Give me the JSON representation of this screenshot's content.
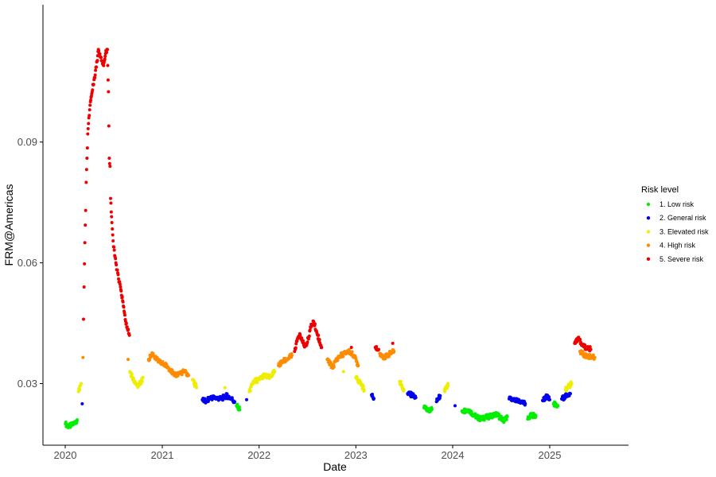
{
  "chart_data": {
    "type": "scatter",
    "xlabel": "Date",
    "ylabel": "FRM@Americas",
    "x_ticks": [
      "2020",
      "2021",
      "2022",
      "2023",
      "2024",
      "2025"
    ],
    "y_ticks": [
      0.03,
      0.06,
      0.09
    ],
    "y_tick_labels": [
      "0.03",
      "0.06",
      "0.09"
    ],
    "xlim": [
      "2019-10-09",
      "2025-10-25"
    ],
    "ylim": [
      0.0147,
      0.1241
    ],
    "grid": false,
    "legend": {
      "title": "Risk level",
      "position": "right",
      "items": [
        {
          "label": "1. Low risk",
          "color": "#00ee00"
        },
        {
          "label": "2. General risk",
          "color": "#0000ee"
        },
        {
          "label": "3. Elevated risk",
          "color": "#eeee00"
        },
        {
          "label": "4. High risk",
          "color": "#ff8c00"
        },
        {
          "label": "5. Severe risk",
          "color": "#ee0000"
        }
      ]
    },
    "series": [
      {
        "risk": 1,
        "values": [
          [
            "2020-01-02",
            0.02
          ],
          [
            "2020-01-15",
            0.0193
          ],
          [
            "2020-02-01",
            0.02
          ],
          [
            "2020-02-15",
            0.021
          ],
          [
            "2021-10-08",
            0.0245
          ],
          [
            "2021-10-20",
            0.0235
          ],
          [
            "2023-09-15",
            0.024
          ],
          [
            "2023-10-01",
            0.0234
          ],
          [
            "2023-10-15",
            0.0236
          ],
          [
            "2024-02-05",
            0.0232
          ],
          [
            "2024-03-01",
            0.0235
          ],
          [
            "2024-03-20",
            0.0222
          ],
          [
            "2024-04-15",
            0.0212
          ],
          [
            "2024-05-15",
            0.0218
          ],
          [
            "2024-06-15",
            0.0224
          ],
          [
            "2024-07-10",
            0.0208
          ],
          [
            "2024-07-25",
            0.0218
          ],
          [
            "2024-10-10",
            0.0212
          ],
          [
            "2024-10-25",
            0.0222
          ],
          [
            "2024-11-10",
            0.022
          ],
          [
            "2025-01-15",
            0.025
          ],
          [
            "2025-02-01",
            0.0245
          ]
        ]
      },
      {
        "risk": 2,
        "values": [
          [
            "2020-03-05",
            0.025
          ],
          [
            "2021-06-01",
            0.026
          ],
          [
            "2021-06-15",
            0.0255
          ],
          [
            "2021-07-01",
            0.0265
          ],
          [
            "2021-07-20",
            0.0265
          ],
          [
            "2021-08-10",
            0.0262
          ],
          [
            "2021-09-01",
            0.027
          ],
          [
            "2021-09-20",
            0.0262
          ],
          [
            "2021-10-01",
            0.0255
          ],
          [
            "2021-11-15",
            0.026
          ],
          [
            "2023-03-01",
            0.0272
          ],
          [
            "2023-03-10",
            0.0263
          ],
          [
            "2023-07-15",
            0.0275
          ],
          [
            "2023-08-01",
            0.0272
          ],
          [
            "2023-08-15",
            0.0265
          ],
          [
            "2023-11-01",
            0.0255
          ],
          [
            "2023-11-15",
            0.027
          ],
          [
            "2024-01-10",
            0.0245
          ],
          [
            "2024-08-01",
            0.0262
          ],
          [
            "2024-08-20",
            0.0258
          ],
          [
            "2024-09-15",
            0.0255
          ],
          [
            "2024-10-01",
            0.025
          ],
          [
            "2024-12-05",
            0.0258
          ],
          [
            "2024-12-20",
            0.0268
          ],
          [
            "2025-01-01",
            0.026
          ],
          [
            "2025-02-15",
            0.0262
          ],
          [
            "2025-03-10",
            0.0272
          ],
          [
            "2025-03-20",
            0.0275
          ]
        ]
      },
      {
        "risk": 3,
        "values": [
          [
            "2020-02-20",
            0.028
          ],
          [
            "2020-03-01",
            0.03
          ],
          [
            "2020-09-01",
            0.033
          ],
          [
            "2020-09-20",
            0.03
          ],
          [
            "2020-10-05",
            0.0295
          ],
          [
            "2020-10-20",
            0.0315
          ],
          [
            "2021-04-25",
            0.031
          ],
          [
            "2021-05-10",
            0.029
          ],
          [
            "2021-08-25",
            0.029
          ],
          [
            "2021-11-25",
            0.028
          ],
          [
            "2021-12-10",
            0.0305
          ],
          [
            "2022-01-01",
            0.031
          ],
          [
            "2022-01-20",
            0.032
          ],
          [
            "2022-02-10",
            0.0315
          ],
          [
            "2022-03-01",
            0.033
          ],
          [
            "2022-11-15",
            0.033
          ],
          [
            "2023-01-01",
            0.0315
          ],
          [
            "2023-01-20",
            0.03
          ],
          [
            "2023-02-01",
            0.0285
          ],
          [
            "2023-06-15",
            0.0305
          ],
          [
            "2023-07-01",
            0.0285
          ],
          [
            "2023-12-01",
            0.0285
          ],
          [
            "2023-12-15",
            0.0295
          ],
          [
            "2025-03-01",
            0.0285
          ],
          [
            "2025-03-25",
            0.03
          ]
        ]
      },
      {
        "risk": 4,
        "values": [
          [
            "2020-03-08",
            0.0365
          ],
          [
            "2020-08-25",
            0.036
          ],
          [
            "2020-11-10",
            0.036
          ],
          [
            "2020-11-25",
            0.0375
          ],
          [
            "2020-12-10",
            0.036
          ],
          [
            "2020-12-25",
            0.0352
          ],
          [
            "2021-01-15",
            0.0345
          ],
          [
            "2021-02-01",
            0.0335
          ],
          [
            "2021-02-15",
            0.032
          ],
          [
            "2021-03-05",
            0.0325
          ],
          [
            "2021-03-25",
            0.033
          ],
          [
            "2021-04-10",
            0.032
          ],
          [
            "2022-03-15",
            0.0345
          ],
          [
            "2022-04-01",
            0.0355
          ],
          [
            "2022-04-20",
            0.0362
          ],
          [
            "2022-05-05",
            0.037
          ],
          [
            "2022-09-15",
            0.036
          ],
          [
            "2022-10-05",
            0.034
          ],
          [
            "2022-10-20",
            0.036
          ],
          [
            "2022-11-05",
            0.037
          ],
          [
            "2022-12-05",
            0.038
          ],
          [
            "2022-12-25",
            0.037
          ],
          [
            "2023-01-10",
            0.0345
          ],
          [
            "2023-04-01",
            0.0375
          ],
          [
            "2023-04-20",
            0.0365
          ],
          [
            "2023-05-10",
            0.0375
          ],
          [
            "2023-05-25",
            0.038
          ],
          [
            "2025-04-25",
            0.038
          ],
          [
            "2025-05-15",
            0.037
          ],
          [
            "2025-06-20",
            0.0365
          ]
        ]
      },
      {
        "risk": 5,
        "values": [
          [
            "2020-03-10",
            0.046
          ],
          [
            "2020-03-12",
            0.054
          ],
          [
            "2020-03-15",
            0.065
          ],
          [
            "2020-03-18",
            0.073
          ],
          [
            "2020-03-20",
            0.08
          ],
          [
            "2020-03-23",
            0.086
          ],
          [
            "2020-03-26",
            0.092
          ],
          [
            "2020-03-30",
            0.096
          ],
          [
            "2020-04-05",
            0.1
          ],
          [
            "2020-04-10",
            0.102
          ],
          [
            "2020-04-20",
            0.106
          ],
          [
            "2020-04-30",
            0.11
          ],
          [
            "2020-05-05",
            0.113
          ],
          [
            "2020-05-15",
            0.111
          ],
          [
            "2020-05-25",
            0.109
          ],
          [
            "2020-06-01",
            0.112
          ],
          [
            "2020-06-08",
            0.113
          ],
          [
            "2020-06-12",
            0.1025
          ],
          [
            "2020-06-15",
            0.086
          ],
          [
            "2020-06-18",
            0.084
          ],
          [
            "2020-06-20",
            0.076
          ],
          [
            "2020-06-25",
            0.07
          ],
          [
            "2020-07-01",
            0.064
          ],
          [
            "2020-07-10",
            0.06
          ],
          [
            "2020-07-20",
            0.056
          ],
          [
            "2020-07-30",
            0.053
          ],
          [
            "2020-08-10",
            0.048
          ],
          [
            "2020-08-20",
            0.044
          ],
          [
            "2020-08-30",
            0.042
          ],
          [
            "2022-05-15",
            0.038
          ],
          [
            "2022-05-25",
            0.041
          ],
          [
            "2022-06-05",
            0.042
          ],
          [
            "2022-06-20",
            0.0395
          ],
          [
            "2022-07-01",
            0.04
          ],
          [
            "2022-07-15",
            0.044
          ],
          [
            "2022-07-25",
            0.0455
          ],
          [
            "2022-08-10",
            0.042
          ],
          [
            "2022-08-25",
            0.039
          ],
          [
            "2022-12-15",
            0.039
          ],
          [
            "2023-03-15",
            0.039
          ],
          [
            "2023-03-28",
            0.0385
          ],
          [
            "2023-05-20",
            0.04
          ],
          [
            "2025-04-05",
            0.04
          ],
          [
            "2025-04-20",
            0.0415
          ],
          [
            "2025-05-01",
            0.0395
          ],
          [
            "2025-05-20",
            0.039
          ],
          [
            "2025-06-05",
            0.0385
          ]
        ]
      }
    ]
  }
}
